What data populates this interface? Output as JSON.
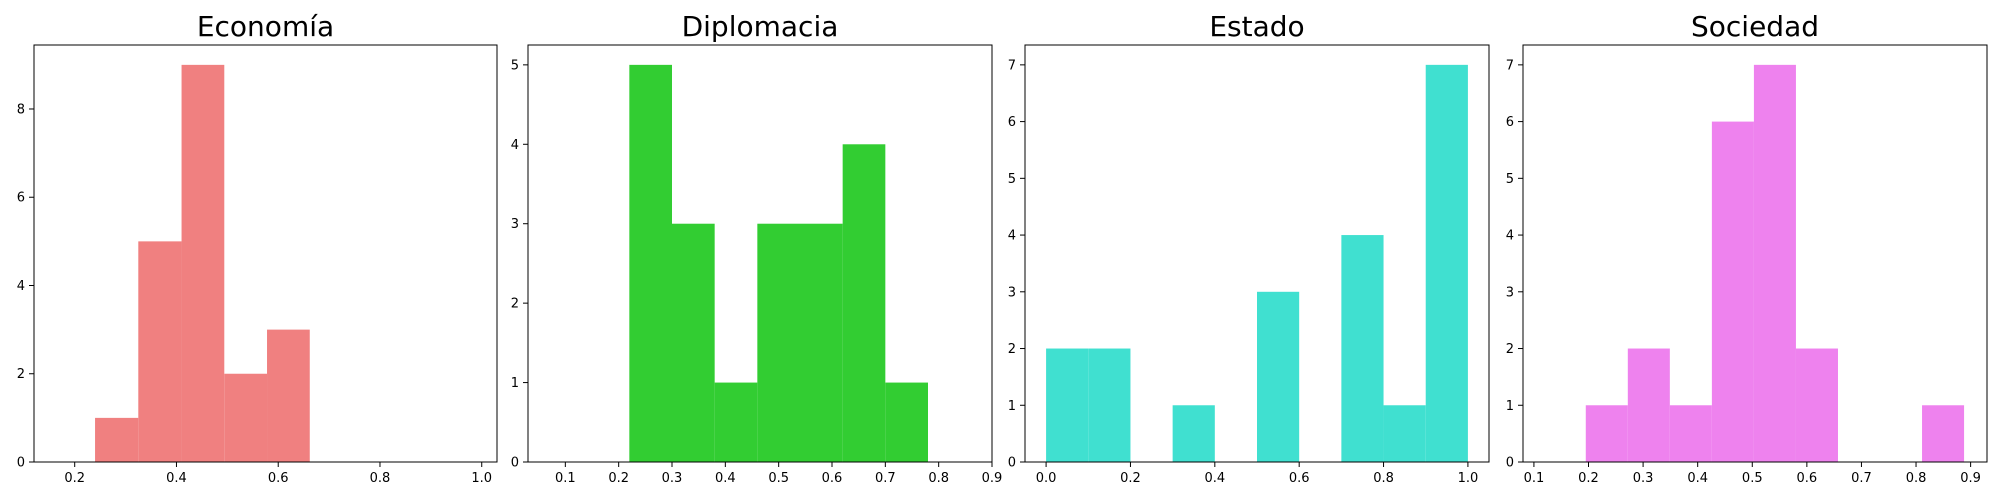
{
  "chart_data": [
    {
      "type": "histogram",
      "title": "Economía",
      "color": "#f08080",
      "xlim": [
        0.12,
        1.03
      ],
      "ylim": [
        0,
        9.45
      ],
      "xticks": [
        0.2,
        0.4,
        0.6,
        0.8,
        1.0
      ],
      "xtick_labels": [
        "0.2",
        "0.4",
        "0.6",
        "0.8",
        "1.0"
      ],
      "yticks": [
        0,
        2,
        4,
        6,
        8
      ],
      "ytick_labels": [
        "0",
        "2",
        "4",
        "6",
        "8"
      ],
      "bins": [
        {
          "x0": 0.24,
          "x1": 0.325,
          "count": 1
        },
        {
          "x0": 0.325,
          "x1": 0.41,
          "count": 5
        },
        {
          "x0": 0.41,
          "x1": 0.494,
          "count": 9
        },
        {
          "x0": 0.494,
          "x1": 0.578,
          "count": 2
        },
        {
          "x0": 0.578,
          "x1": 0.662,
          "count": 3
        }
      ]
    },
    {
      "type": "histogram",
      "title": "Diplomacia",
      "color": "#32cd32",
      "xlim": [
        0.03,
        0.9
      ],
      "ylim": [
        0,
        5.25
      ],
      "xticks": [
        0.1,
        0.2,
        0.3,
        0.4,
        0.5,
        0.6,
        0.7,
        0.8,
        0.9
      ],
      "xtick_labels": [
        "0.1",
        "0.2",
        "0.3",
        "0.4",
        "0.5",
        "0.6",
        "0.7",
        "0.8",
        "0.9"
      ],
      "yticks": [
        0,
        1,
        2,
        3,
        4,
        5
      ],
      "ytick_labels": [
        "0",
        "1",
        "2",
        "3",
        "4",
        "5"
      ],
      "bins": [
        {
          "x0": 0.22,
          "x1": 0.3,
          "count": 5
        },
        {
          "x0": 0.3,
          "x1": 0.38,
          "count": 3
        },
        {
          "x0": 0.38,
          "x1": 0.46,
          "count": 1
        },
        {
          "x0": 0.46,
          "x1": 0.54,
          "count": 3
        },
        {
          "x0": 0.54,
          "x1": 0.62,
          "count": 3
        },
        {
          "x0": 0.62,
          "x1": 0.7,
          "count": 4
        },
        {
          "x0": 0.7,
          "x1": 0.78,
          "count": 1
        }
      ]
    },
    {
      "type": "histogram",
      "title": "Estado",
      "color": "#40e0d0",
      "xlim": [
        -0.05,
        1.05
      ],
      "ylim": [
        0,
        7.35
      ],
      "xticks": [
        0.0,
        0.2,
        0.4,
        0.6,
        0.8,
        1.0
      ],
      "xtick_labels": [
        "0.0",
        "0.2",
        "0.4",
        "0.6",
        "0.8",
        "1.0"
      ],
      "yticks": [
        0,
        1,
        2,
        3,
        4,
        5,
        6,
        7
      ],
      "ytick_labels": [
        "0",
        "1",
        "2",
        "3",
        "4",
        "5",
        "6",
        "7"
      ],
      "bins": [
        {
          "x0": 0.0,
          "x1": 0.1,
          "count": 2
        },
        {
          "x0": 0.1,
          "x1": 0.2,
          "count": 2
        },
        {
          "x0": 0.3,
          "x1": 0.4,
          "count": 1
        },
        {
          "x0": 0.5,
          "x1": 0.6,
          "count": 3
        },
        {
          "x0": 0.7,
          "x1": 0.8,
          "count": 4
        },
        {
          "x0": 0.8,
          "x1": 0.9,
          "count": 1
        },
        {
          "x0": 0.9,
          "x1": 1.0,
          "count": 7
        }
      ]
    },
    {
      "type": "histogram",
      "title": "Sociedad",
      "color": "#ee82ee",
      "xlim": [
        0.08,
        0.93
      ],
      "ylim": [
        0,
        7.35
      ],
      "xticks": [
        0.1,
        0.2,
        0.3,
        0.4,
        0.5,
        0.6,
        0.7,
        0.8,
        0.9
      ],
      "xtick_labels": [
        "0.1",
        "0.2",
        "0.3",
        "0.4",
        "0.5",
        "0.6",
        "0.7",
        "0.8",
        "0.9"
      ],
      "yticks": [
        0,
        1,
        2,
        3,
        4,
        5,
        6,
        7
      ],
      "ytick_labels": [
        "0",
        "1",
        "2",
        "3",
        "4",
        "5",
        "6",
        "7"
      ],
      "bins": [
        {
          "x0": 0.195,
          "x1": 0.272,
          "count": 1
        },
        {
          "x0": 0.272,
          "x1": 0.349,
          "count": 2
        },
        {
          "x0": 0.349,
          "x1": 0.426,
          "count": 1
        },
        {
          "x0": 0.426,
          "x1": 0.503,
          "count": 6
        },
        {
          "x0": 0.503,
          "x1": 0.58,
          "count": 7
        },
        {
          "x0": 0.58,
          "x1": 0.657,
          "count": 2
        },
        {
          "x0": 0.811,
          "x1": 0.888,
          "count": 1
        }
      ]
    }
  ]
}
